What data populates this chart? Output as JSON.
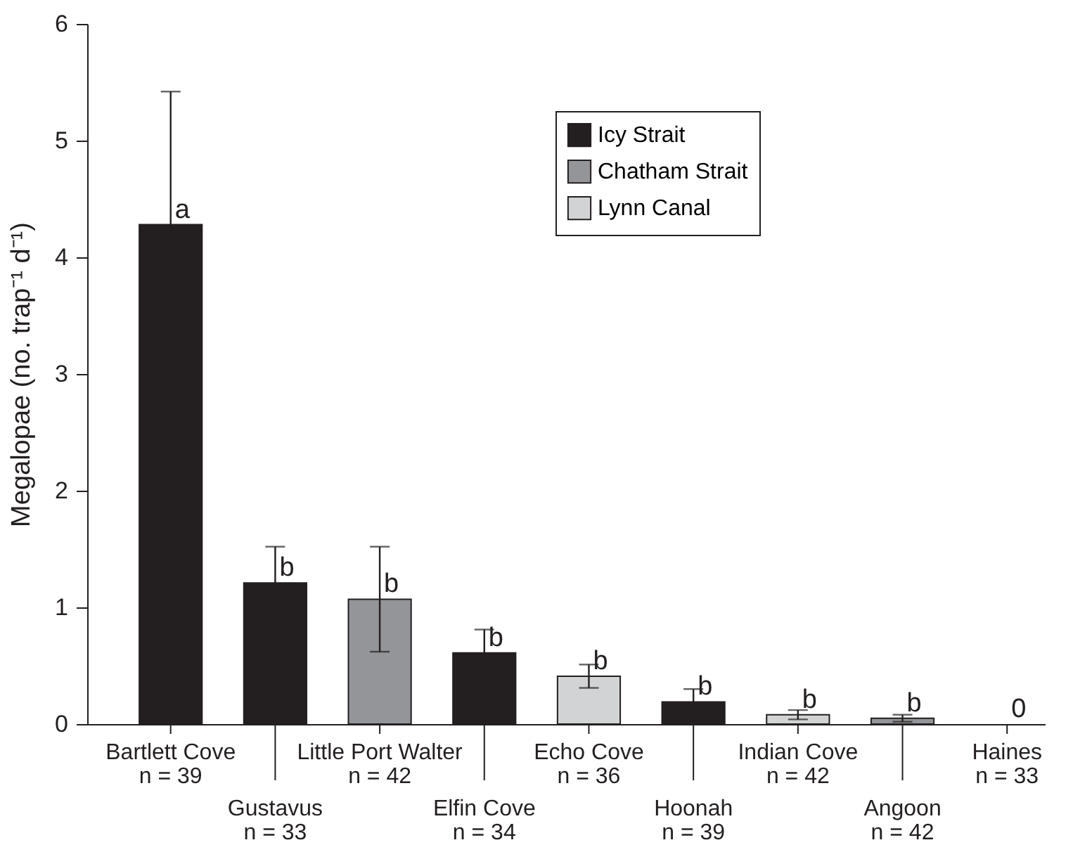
{
  "chart_data": {
    "type": "bar",
    "ylabel": "Megalopae (no. trap⁻¹ d⁻¹)",
    "categories": [
      "Bartlett Cove\nn = 39",
      "Gustavus\nn = 33",
      "Little Port Walter\nn = 42",
      "Elfin Cove\nn = 34",
      "Echo Cove\nn = 36",
      "Hoonah\nn = 39",
      "Indian Cove\nn = 42",
      "Angoon\nn = 42",
      "Haines\nn = 33"
    ],
    "series": [
      {
        "name": "Icy Strait",
        "color": "#231f20",
        "values": [
          4.28,
          1.21,
          null,
          0.61,
          null,
          0.19,
          null,
          null,
          null
        ],
        "errors": [
          1.14,
          0.31,
          null,
          0.2,
          null,
          0.11,
          null,
          null,
          null
        ],
        "value_labels": [
          "a",
          "b",
          null,
          "b",
          null,
          "b",
          null,
          null,
          null
        ]
      },
      {
        "name": "Chatham Strait",
        "color": "#939598",
        "values": [
          null,
          null,
          1.07,
          null,
          null,
          null,
          null,
          0.05,
          null
        ],
        "errors": [
          null,
          null,
          0.45,
          null,
          null,
          null,
          null,
          0.03,
          null
        ],
        "value_labels": [
          null,
          null,
          "b",
          null,
          null,
          null,
          null,
          "b",
          null
        ]
      },
      {
        "name": "Lynn Canal",
        "color": "#d1d3d4",
        "values": [
          null,
          null,
          null,
          null,
          0.41,
          null,
          0.08,
          null,
          0
        ],
        "errors": [
          null,
          null,
          null,
          null,
          0.1,
          null,
          0.04,
          null,
          null
        ],
        "value_labels": [
          null,
          null,
          null,
          null,
          "b",
          null,
          "b",
          null,
          "0"
        ]
      }
    ],
    "ylim": [
      0,
      6
    ],
    "yticks": [
      0,
      1,
      2,
      3,
      4,
      5,
      6
    ],
    "grid": false,
    "legend": "top right"
  }
}
